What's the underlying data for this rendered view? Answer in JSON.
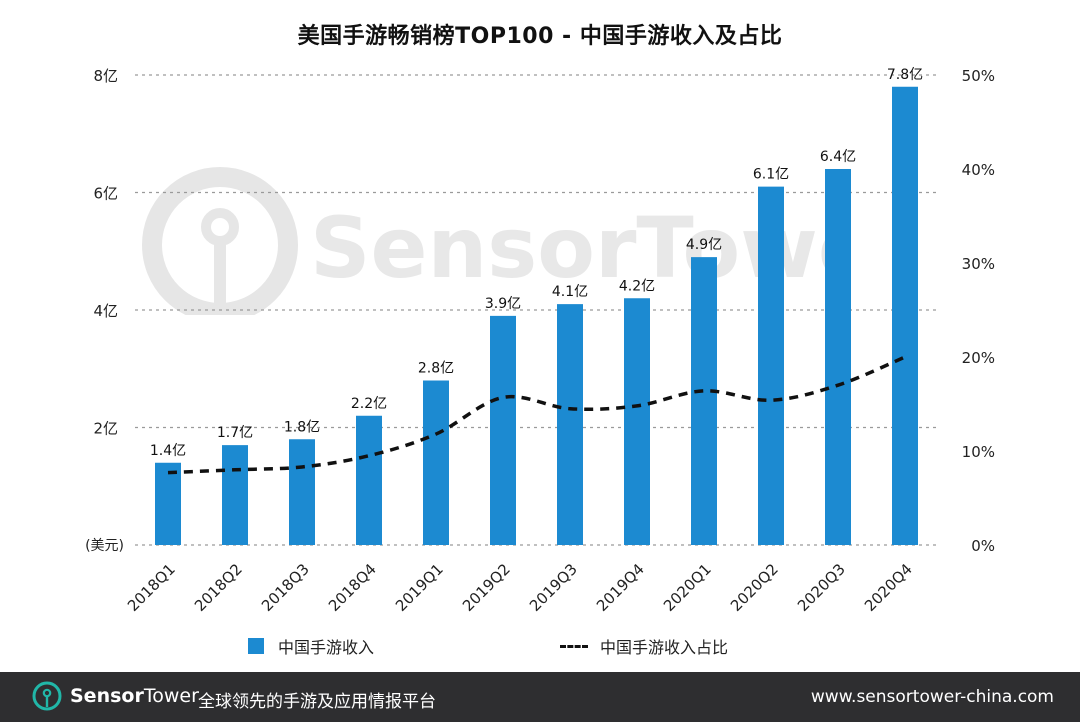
{
  "title": "美国手游畅销榜TOP100 - 中国手游收入及占比",
  "chart_data": {
    "type": "bar",
    "categories": [
      "2018Q1",
      "2018Q2",
      "2018Q3",
      "2018Q4",
      "2019Q1",
      "2019Q2",
      "2019Q3",
      "2019Q4",
      "2020Q1",
      "2020Q2",
      "2020Q3",
      "2020Q4"
    ],
    "series": [
      {
        "name": "中国手游收入",
        "type": "bar",
        "axis": "left",
        "values": [
          1.4,
          1.7,
          1.8,
          2.2,
          2.8,
          3.9,
          4.1,
          4.2,
          4.9,
          6.1,
          6.4,
          7.8
        ],
        "labels": [
          "1.4亿",
          "1.7亿",
          "1.8亿",
          "2.2亿",
          "2.8亿",
          "3.9亿",
          "4.1亿",
          "4.2亿",
          "4.9亿",
          "6.1亿",
          "6.4亿",
          "7.8亿"
        ],
        "color": "#1c8ad1"
      },
      {
        "name": "中国手游收入占比",
        "type": "line",
        "axis": "right",
        "style": "dashed",
        "values": [
          7.7,
          8.0,
          8.3,
          9.5,
          11.8,
          15.7,
          14.5,
          14.8,
          16.4,
          15.4,
          17.0,
          20.0
        ],
        "color": "#111111"
      }
    ],
    "ylim_left": [
      0,
      8
    ],
    "ylim_right": [
      0,
      50
    ],
    "yticks_left": [
      "",
      "2亿",
      "4亿",
      "6亿",
      "8亿"
    ],
    "yunit_left": "(美元)",
    "yticks_right": [
      "0%",
      "10%",
      "20%",
      "30%",
      "40%",
      "50%"
    ],
    "grid": true,
    "legend_position": "bottom"
  },
  "legend": {
    "bar_label": "中国手游收入",
    "line_label": "中国手游收入占比"
  },
  "watermark": {
    "text": "SensorTower"
  },
  "footer": {
    "brand_a": "Sensor",
    "brand_b": "Tower",
    "tagline": "全球领先的手游及应用情报平台",
    "url": "www.sensortower-china.com"
  }
}
